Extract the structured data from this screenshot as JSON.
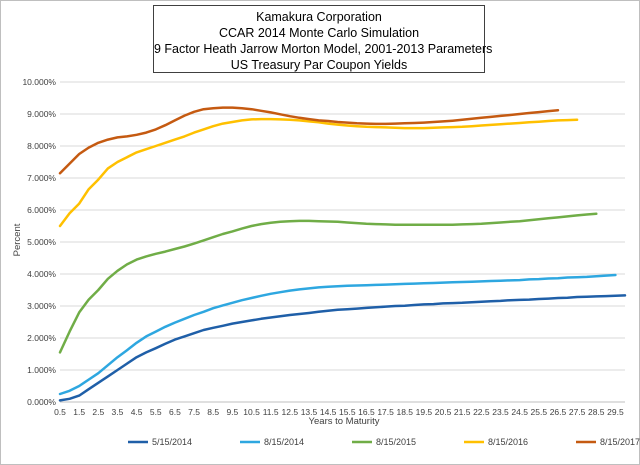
{
  "chart_data": {
    "type": "line",
    "title_lines": [
      "Kamakura Corporation",
      "CCAR 2014 Monte Carlo Simulation",
      "9 Factor Heath Jarrow Morton Model, 2001-2013 Parameters",
      "US Treasury Par Coupon Yields"
    ],
    "xlabel": "Years to Maturity",
    "ylabel": "Percent",
    "x_tick_labels": [
      "0.5",
      "1.5",
      "2.5",
      "3.5",
      "4.5",
      "5.5",
      "6.5",
      "7.5",
      "8.5",
      "9.5",
      "10.5",
      "11.5",
      "12.5",
      "13.5",
      "14.5",
      "15.5",
      "16.5",
      "17.5",
      "18.5",
      "19.5",
      "20.5",
      "21.5",
      "22.5",
      "23.5",
      "24.5",
      "25.5",
      "26.5",
      "27.5",
      "28.5",
      "29.5"
    ],
    "y_tick_labels": [
      "0.000%",
      "1.000%",
      "2.000%",
      "3.000%",
      "4.000%",
      "5.000%",
      "6.000%",
      "7.000%",
      "8.000%",
      "9.000%",
      "10.000%"
    ],
    "xlim": [
      0.5,
      30.0
    ],
    "ylim": [
      0,
      10
    ],
    "grid": "horizontal",
    "legend_position": "bottom",
    "series": [
      {
        "name": "5/15/2014",
        "color": "#1f5fa8",
        "x": [
          0.5,
          1,
          1.5,
          2,
          2.5,
          3,
          3.5,
          4,
          4.5,
          5,
          5.5,
          6,
          6.5,
          7,
          7.5,
          8,
          8.5,
          9,
          9.5,
          10,
          10.5,
          11,
          11.5,
          12,
          12.5,
          13,
          13.5,
          14,
          14.5,
          15,
          15.5,
          16,
          16.5,
          17,
          17.5,
          18,
          18.5,
          19,
          19.5,
          20,
          20.5,
          21,
          21.5,
          22,
          22.5,
          23,
          23.5,
          24,
          24.5,
          25,
          25.5,
          26,
          26.5,
          27,
          27.5,
          28,
          28.5,
          29,
          29.5,
          30
        ],
        "values": [
          0.05,
          0.1,
          0.2,
          0.4,
          0.6,
          0.8,
          1.0,
          1.2,
          1.4,
          1.55,
          1.68,
          1.82,
          1.95,
          2.05,
          2.15,
          2.25,
          2.32,
          2.38,
          2.45,
          2.5,
          2.55,
          2.6,
          2.64,
          2.68,
          2.72,
          2.75,
          2.78,
          2.82,
          2.85,
          2.88,
          2.9,
          2.92,
          2.94,
          2.96,
          2.98,
          3.0,
          3.01,
          3.03,
          3.05,
          3.06,
          3.08,
          3.09,
          3.1,
          3.12,
          3.13,
          3.15,
          3.16,
          3.18,
          3.19,
          3.2,
          3.22,
          3.23,
          3.25,
          3.26,
          3.28,
          3.29,
          3.3,
          3.31,
          3.32,
          3.33
        ]
      },
      {
        "name": "8/15/2014",
        "color": "#2ea7e0",
        "x": [
          0.5,
          1,
          1.5,
          2,
          2.5,
          3,
          3.5,
          4,
          4.5,
          5,
          5.5,
          6,
          6.5,
          7,
          7.5,
          8,
          8.5,
          9,
          9.5,
          10,
          10.5,
          11,
          11.5,
          12,
          12.5,
          13,
          13.5,
          14,
          14.5,
          15,
          15.5,
          16,
          16.5,
          17,
          17.5,
          18,
          18.5,
          19,
          19.5,
          20,
          20.5,
          21,
          21.5,
          22,
          22.5,
          23,
          23.5,
          24,
          24.5,
          25,
          25.5,
          26,
          26.5,
          27,
          27.5,
          28,
          28.5,
          29,
          29.5
        ],
        "values": [
          0.25,
          0.35,
          0.5,
          0.7,
          0.9,
          1.15,
          1.4,
          1.62,
          1.85,
          2.05,
          2.2,
          2.35,
          2.48,
          2.6,
          2.72,
          2.82,
          2.93,
          3.02,
          3.1,
          3.18,
          3.25,
          3.32,
          3.38,
          3.43,
          3.48,
          3.52,
          3.55,
          3.58,
          3.6,
          3.62,
          3.63,
          3.64,
          3.65,
          3.66,
          3.67,
          3.68,
          3.69,
          3.7,
          3.71,
          3.72,
          3.73,
          3.74,
          3.75,
          3.76,
          3.77,
          3.78,
          3.79,
          3.8,
          3.81,
          3.83,
          3.84,
          3.86,
          3.87,
          3.89,
          3.9,
          3.91,
          3.93,
          3.95,
          3.97
        ]
      },
      {
        "name": "8/15/2015",
        "color": "#70ad47",
        "x": [
          0.5,
          1,
          1.5,
          2,
          2.5,
          3,
          3.5,
          4,
          4.5,
          5,
          5.5,
          6,
          6.5,
          7,
          7.5,
          8,
          8.5,
          9,
          9.5,
          10,
          10.5,
          11,
          11.5,
          12,
          12.5,
          13,
          13.5,
          14,
          14.5,
          15,
          15.5,
          16,
          16.5,
          17,
          17.5,
          18,
          18.5,
          19,
          19.5,
          20,
          20.5,
          21,
          21.5,
          22,
          22.5,
          23,
          23.5,
          24,
          24.5,
          25,
          25.5,
          26,
          26.5,
          27,
          27.5,
          28,
          28.5
        ],
        "values": [
          1.55,
          2.2,
          2.8,
          3.2,
          3.5,
          3.85,
          4.1,
          4.3,
          4.45,
          4.55,
          4.63,
          4.7,
          4.78,
          4.86,
          4.95,
          5.05,
          5.15,
          5.25,
          5.33,
          5.42,
          5.5,
          5.56,
          5.6,
          5.63,
          5.65,
          5.66,
          5.66,
          5.65,
          5.64,
          5.63,
          5.61,
          5.59,
          5.57,
          5.56,
          5.55,
          5.54,
          5.54,
          5.54,
          5.54,
          5.54,
          5.54,
          5.54,
          5.55,
          5.56,
          5.57,
          5.59,
          5.61,
          5.63,
          5.65,
          5.68,
          5.71,
          5.74,
          5.77,
          5.8,
          5.83,
          5.86,
          5.88
        ]
      },
      {
        "name": "8/15/2016",
        "color": "#ffc000",
        "x": [
          0.5,
          1,
          1.5,
          2,
          2.5,
          3,
          3.5,
          4,
          4.5,
          5,
          5.5,
          6,
          6.5,
          7,
          7.5,
          8,
          8.5,
          9,
          9.5,
          10,
          10.5,
          11,
          11.5,
          12,
          12.5,
          13,
          13.5,
          14,
          14.5,
          15,
          15.5,
          16,
          16.5,
          17,
          17.5,
          18,
          18.5,
          19,
          19.5,
          20,
          20.5,
          21,
          21.5,
          22,
          22.5,
          23,
          23.5,
          24,
          24.5,
          25,
          25.5,
          26,
          26.5,
          27,
          27.5
        ],
        "values": [
          5.5,
          5.9,
          6.2,
          6.65,
          6.95,
          7.3,
          7.5,
          7.65,
          7.8,
          7.9,
          8.0,
          8.1,
          8.2,
          8.3,
          8.42,
          8.52,
          8.62,
          8.7,
          8.75,
          8.8,
          8.83,
          8.84,
          8.84,
          8.83,
          8.82,
          8.8,
          8.77,
          8.74,
          8.7,
          8.67,
          8.64,
          8.62,
          8.6,
          8.59,
          8.58,
          8.57,
          8.56,
          8.56,
          8.56,
          8.57,
          8.58,
          8.59,
          8.6,
          8.62,
          8.64,
          8.66,
          8.68,
          8.7,
          8.72,
          8.74,
          8.76,
          8.78,
          8.8,
          8.81,
          8.82
        ]
      },
      {
        "name": "8/15/2017",
        "color": "#c55a11",
        "x": [
          0.5,
          1,
          1.5,
          2,
          2.5,
          3,
          3.5,
          4,
          4.5,
          5,
          5.5,
          6,
          6.5,
          7,
          7.5,
          8,
          8.5,
          9,
          9.5,
          10,
          10.5,
          11,
          11.5,
          12,
          12.5,
          13,
          13.5,
          14,
          14.5,
          15,
          15.5,
          16,
          16.5,
          17,
          17.5,
          18,
          18.5,
          19,
          19.5,
          20,
          20.5,
          21,
          21.5,
          22,
          22.5,
          23,
          23.5,
          24,
          24.5,
          25,
          25.5,
          26,
          26.5
        ],
        "values": [
          7.15,
          7.45,
          7.75,
          7.95,
          8.1,
          8.2,
          8.27,
          8.3,
          8.35,
          8.42,
          8.52,
          8.65,
          8.8,
          8.95,
          9.07,
          9.15,
          9.18,
          9.2,
          9.2,
          9.18,
          9.15,
          9.1,
          9.05,
          8.99,
          8.93,
          8.88,
          8.84,
          8.8,
          8.78,
          8.75,
          8.73,
          8.71,
          8.7,
          8.69,
          8.69,
          8.7,
          8.71,
          8.72,
          8.73,
          8.75,
          8.77,
          8.79,
          8.82,
          8.85,
          8.88,
          8.91,
          8.94,
          8.97,
          9.0,
          9.03,
          9.06,
          9.09,
          9.12
        ]
      }
    ]
  }
}
